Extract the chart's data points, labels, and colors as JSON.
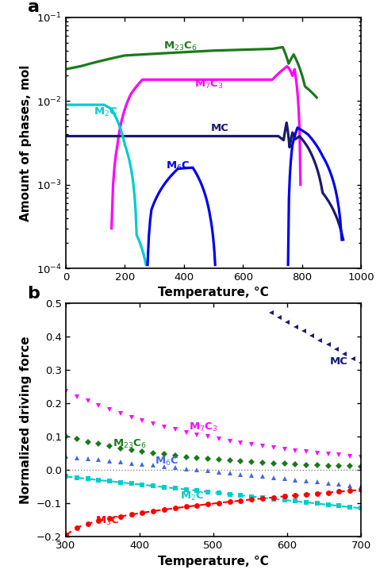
{
  "panel_a": {
    "xlabel": "Temperature, °C",
    "ylabel": "Amount of phases, mol",
    "xlim": [
      0,
      1000
    ],
    "label": "a"
  },
  "panel_b": {
    "xlabel": "Temperature, °C",
    "ylabel": "Normalized driving force",
    "xlim": [
      300,
      700
    ],
    "ylim": [
      -0.2,
      0.5
    ],
    "label": "b"
  },
  "colors": {
    "M23C6": "#1a7a1a",
    "M7C3": "#FF00FF",
    "MC_a": "#1a1a6e",
    "M2C": "#00CCCC",
    "M6C_a": "#0000EE",
    "MC_b": "#191970",
    "M23C6_b": "#1a7a1a",
    "M7C3_b": "#FF00FF",
    "M6C_b": "#4169E1",
    "M2C_b": "#00CCCC",
    "M3C_b": "#FF0000"
  },
  "figure_bg": "#FFFFFF"
}
